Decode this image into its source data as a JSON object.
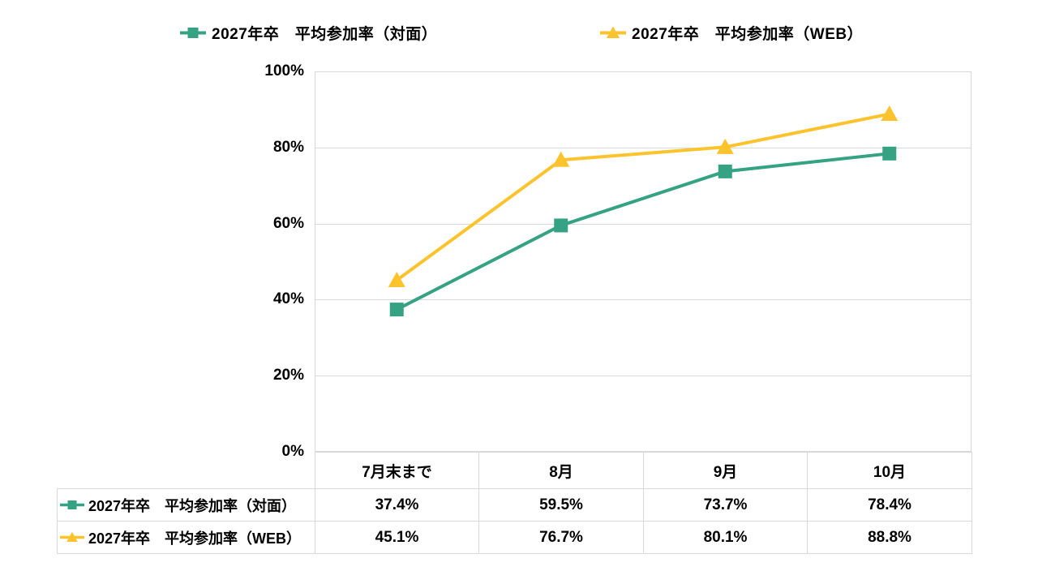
{
  "legend": {
    "items": [
      {
        "label": "2027年卒　平均参加率（対面）",
        "color": "#35A284",
        "marker": "square"
      },
      {
        "label": "2027年卒　平均参加率（WEB）",
        "color": "#FCC32D",
        "marker": "triangle"
      }
    ]
  },
  "y_axis": {
    "ticks": [
      "100%",
      "80%",
      "60%",
      "40%",
      "20%",
      "0%"
    ]
  },
  "table": {
    "col_headers": [
      "7月末まで",
      "8月",
      "9月",
      "10月"
    ],
    "rows": [
      {
        "label": "2027年卒　平均参加率（対面）",
        "color": "#35A284",
        "marker": "square",
        "cells": [
          "37.4%",
          "59.5%",
          "73.7%",
          "78.4%"
        ]
      },
      {
        "label": "2027年卒　平均参加率（WEB）",
        "color": "#FCC32D",
        "marker": "triangle",
        "cells": [
          "45.1%",
          "76.7%",
          "80.1%",
          "88.8%"
        ]
      }
    ]
  },
  "chart_data": {
    "type": "line",
    "categories": [
      "7月末まで",
      "8月",
      "9月",
      "10月"
    ],
    "series": [
      {
        "name": "2027年卒　平均参加率（対面）",
        "values": [
          37.4,
          59.5,
          73.7,
          78.4
        ],
        "color": "#35A284",
        "marker": "square"
      },
      {
        "name": "2027年卒　平均参加率（WEB）",
        "values": [
          45.1,
          76.7,
          80.1,
          88.8
        ],
        "color": "#FCC32D",
        "marker": "triangle"
      }
    ],
    "ylim": [
      0,
      100
    ],
    "y_tick_step": 20,
    "y_tick_format": "percent",
    "grid": "horizontal",
    "gridline_color": "#d9d9d9",
    "legend_position": "top",
    "data_table_shown": true
  }
}
